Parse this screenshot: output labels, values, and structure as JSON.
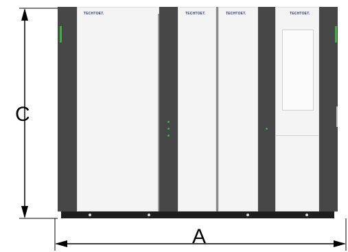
{
  "brand_logos": [
    {
      "text": "TECHTOET",
      "tail": "."
    },
    {
      "text": "TECHTOET",
      "tail": "."
    },
    {
      "text": "TECHTOET",
      "tail": "."
    },
    {
      "text": "TECHTOET",
      "tail": "."
    }
  ],
  "dimensions": {
    "height_label": "C",
    "width_label": "A"
  },
  "colors": {
    "frame_dark": "#474747",
    "panel_light": "#f4f4f4",
    "base": "#1e1e1e",
    "indicator_green": "#3cb043"
  }
}
